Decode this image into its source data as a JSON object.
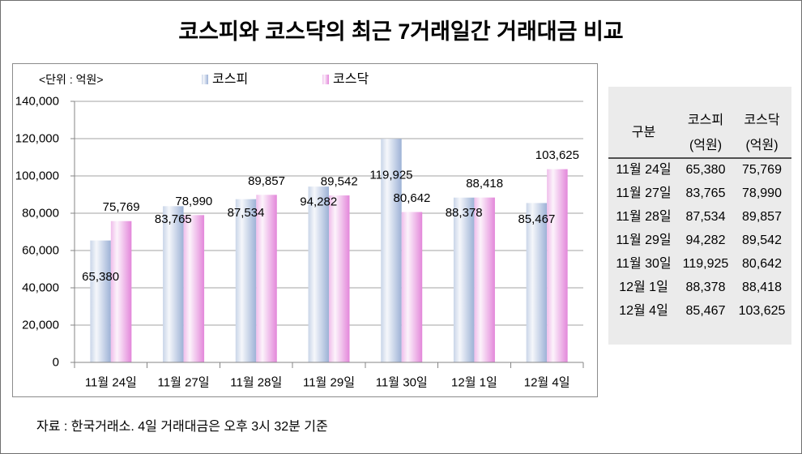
{
  "chart_data": {
    "type": "bar",
    "title": "코스피와 코스닥의 최근 7거래일간 거래대금 비교",
    "unit_label": "<단위 : 억원>",
    "categories": [
      "11월 24일",
      "11월 27일",
      "11월 28일",
      "11월 29일",
      "11월 30일",
      "12월 1일",
      "12월 4일"
    ],
    "ylim": [
      0,
      140000
    ],
    "yticks": [
      0,
      20000,
      40000,
      60000,
      80000,
      100000,
      120000,
      140000
    ],
    "ytick_labels": [
      "0",
      "20,000",
      "40,000",
      "60,000",
      "80,000",
      "100,000",
      "120,000",
      "140,000"
    ],
    "grid": true,
    "legend": "top",
    "series": [
      {
        "name": "코스피",
        "values": [
          65380,
          83765,
          87534,
          94282,
          119925,
          88378,
          85467
        ],
        "labels": [
          "65,380",
          "83,765",
          "87,534",
          "94,282",
          "119,925",
          "88,378",
          "85,467"
        ],
        "color": "#9db2d6"
      },
      {
        "name": "코스닥",
        "values": [
          75769,
          78990,
          89857,
          89542,
          80642,
          88418,
          103625
        ],
        "labels": [
          "75,769",
          "78,990",
          "89,857",
          "89,542",
          "80,642",
          "88,418",
          "103,625"
        ],
        "color": "#e387da"
      }
    ]
  },
  "table": {
    "header": {
      "category": "구분",
      "kospi": "코스피",
      "kospi_unit": "(억원)",
      "kosdaq": "코스닥",
      "kosdaq_unit": "(억원)"
    },
    "rows": [
      [
        "11월 24일",
        "65,380",
        "75,769"
      ],
      [
        "11월 27일",
        "83,765",
        "78,990"
      ],
      [
        "11월 28일",
        "87,534",
        "89,857"
      ],
      [
        "11월 29일",
        "94,282",
        "89,542"
      ],
      [
        "11월 30일",
        "119,925",
        "80,642"
      ],
      [
        "12월 1일",
        "88,378",
        "88,418"
      ],
      [
        "12월 4일",
        "85,467",
        "103,625"
      ]
    ]
  },
  "footer": {
    "source": "자료 : 한국거래소. 4일 거래대금은 오후 3시 32분 기준"
  },
  "colors": {
    "table_background": "#ebebeb"
  }
}
